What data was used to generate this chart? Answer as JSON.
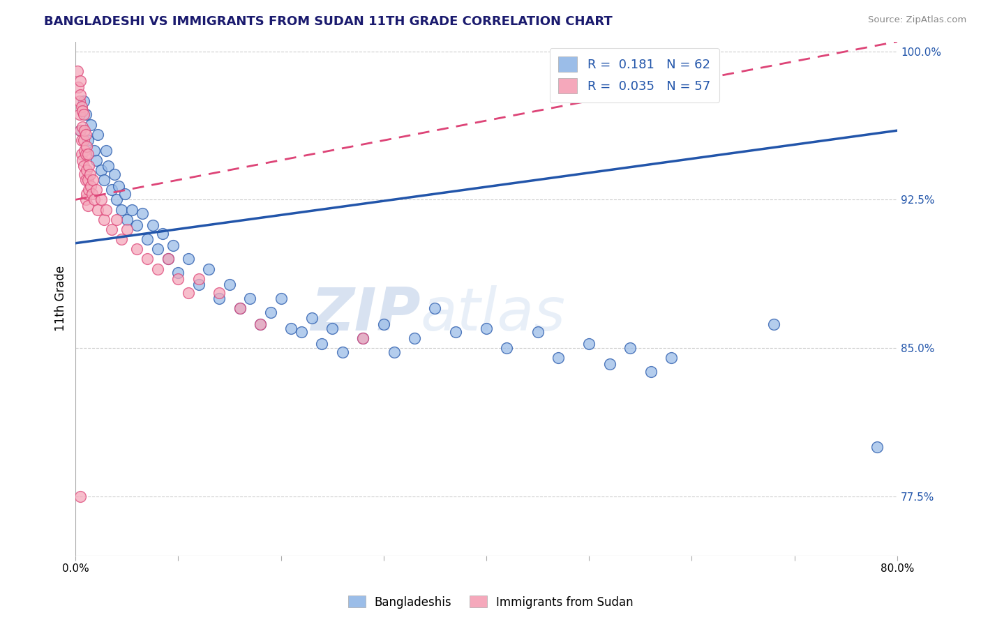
{
  "title": "BANGLADESHI VS IMMIGRANTS FROM SUDAN 11TH GRADE CORRELATION CHART",
  "source": "Source: ZipAtlas.com",
  "ylabel": "11th Grade",
  "legend_labels": [
    "Bangladeshis",
    "Immigrants from Sudan"
  ],
  "R_blue": 0.181,
  "N_blue": 62,
  "R_pink": 0.035,
  "N_pink": 57,
  "xlim": [
    0.0,
    0.8
  ],
  "ylim": [
    0.745,
    1.005
  ],
  "xticks": [
    0.0,
    0.1,
    0.2,
    0.3,
    0.4,
    0.5,
    0.6,
    0.7,
    0.8
  ],
  "xtick_labels": [
    "0.0%",
    "",
    "",
    "",
    "",
    "",
    "",
    "",
    "80.0%"
  ],
  "yticks": [
    0.775,
    0.85,
    0.925,
    1.0
  ],
  "ytick_labels": [
    "77.5%",
    "85.0%",
    "92.5%",
    "100.0%"
  ],
  "blue_color": "#9BBDE8",
  "pink_color": "#F5A8BB",
  "blue_line_color": "#2255AA",
  "pink_line_color": "#DD4477",
  "watermark_zip": "ZIP",
  "watermark_atlas": "atlas",
  "blue_dots": [
    [
      0.005,
      0.96
    ],
    [
      0.008,
      0.975
    ],
    [
      0.01,
      0.968
    ],
    [
      0.012,
      0.955
    ],
    [
      0.015,
      0.963
    ],
    [
      0.018,
      0.95
    ],
    [
      0.02,
      0.945
    ],
    [
      0.022,
      0.958
    ],
    [
      0.025,
      0.94
    ],
    [
      0.028,
      0.935
    ],
    [
      0.03,
      0.95
    ],
    [
      0.032,
      0.942
    ],
    [
      0.035,
      0.93
    ],
    [
      0.038,
      0.938
    ],
    [
      0.04,
      0.925
    ],
    [
      0.042,
      0.932
    ],
    [
      0.045,
      0.92
    ],
    [
      0.048,
      0.928
    ],
    [
      0.05,
      0.915
    ],
    [
      0.055,
      0.92
    ],
    [
      0.06,
      0.912
    ],
    [
      0.065,
      0.918
    ],
    [
      0.07,
      0.905
    ],
    [
      0.075,
      0.912
    ],
    [
      0.08,
      0.9
    ],
    [
      0.085,
      0.908
    ],
    [
      0.09,
      0.895
    ],
    [
      0.095,
      0.902
    ],
    [
      0.1,
      0.888
    ],
    [
      0.11,
      0.895
    ],
    [
      0.12,
      0.882
    ],
    [
      0.13,
      0.89
    ],
    [
      0.14,
      0.875
    ],
    [
      0.15,
      0.882
    ],
    [
      0.16,
      0.87
    ],
    [
      0.17,
      0.875
    ],
    [
      0.18,
      0.862
    ],
    [
      0.19,
      0.868
    ],
    [
      0.2,
      0.875
    ],
    [
      0.21,
      0.86
    ],
    [
      0.22,
      0.858
    ],
    [
      0.23,
      0.865
    ],
    [
      0.24,
      0.852
    ],
    [
      0.25,
      0.86
    ],
    [
      0.26,
      0.848
    ],
    [
      0.28,
      0.855
    ],
    [
      0.3,
      0.862
    ],
    [
      0.31,
      0.848
    ],
    [
      0.33,
      0.855
    ],
    [
      0.35,
      0.87
    ],
    [
      0.37,
      0.858
    ],
    [
      0.4,
      0.86
    ],
    [
      0.42,
      0.85
    ],
    [
      0.45,
      0.858
    ],
    [
      0.47,
      0.845
    ],
    [
      0.5,
      0.852
    ],
    [
      0.52,
      0.842
    ],
    [
      0.54,
      0.85
    ],
    [
      0.56,
      0.838
    ],
    [
      0.58,
      0.845
    ],
    [
      0.68,
      0.862
    ],
    [
      0.78,
      0.8
    ]
  ],
  "pink_dots": [
    [
      0.002,
      0.99
    ],
    [
      0.003,
      0.982
    ],
    [
      0.004,
      0.975
    ],
    [
      0.004,
      0.968
    ],
    [
      0.005,
      0.985
    ],
    [
      0.005,
      0.978
    ],
    [
      0.005,
      0.96
    ],
    [
      0.006,
      0.972
    ],
    [
      0.006,
      0.955
    ],
    [
      0.006,
      0.948
    ],
    [
      0.007,
      0.97
    ],
    [
      0.007,
      0.962
    ],
    [
      0.007,
      0.945
    ],
    [
      0.008,
      0.968
    ],
    [
      0.008,
      0.955
    ],
    [
      0.008,
      0.942
    ],
    [
      0.009,
      0.96
    ],
    [
      0.009,
      0.95
    ],
    [
      0.009,
      0.938
    ],
    [
      0.01,
      0.958
    ],
    [
      0.01,
      0.948
    ],
    [
      0.01,
      0.935
    ],
    [
      0.01,
      0.925
    ],
    [
      0.011,
      0.952
    ],
    [
      0.011,
      0.94
    ],
    [
      0.011,
      0.928
    ],
    [
      0.012,
      0.948
    ],
    [
      0.012,
      0.935
    ],
    [
      0.012,
      0.922
    ],
    [
      0.013,
      0.942
    ],
    [
      0.013,
      0.93
    ],
    [
      0.014,
      0.938
    ],
    [
      0.015,
      0.932
    ],
    [
      0.016,
      0.928
    ],
    [
      0.017,
      0.935
    ],
    [
      0.018,
      0.925
    ],
    [
      0.02,
      0.93
    ],
    [
      0.022,
      0.92
    ],
    [
      0.025,
      0.925
    ],
    [
      0.028,
      0.915
    ],
    [
      0.03,
      0.92
    ],
    [
      0.035,
      0.91
    ],
    [
      0.04,
      0.915
    ],
    [
      0.045,
      0.905
    ],
    [
      0.05,
      0.91
    ],
    [
      0.06,
      0.9
    ],
    [
      0.07,
      0.895
    ],
    [
      0.08,
      0.89
    ],
    [
      0.09,
      0.895
    ],
    [
      0.1,
      0.885
    ],
    [
      0.11,
      0.878
    ],
    [
      0.12,
      0.885
    ],
    [
      0.14,
      0.878
    ],
    [
      0.16,
      0.87
    ],
    [
      0.18,
      0.862
    ],
    [
      0.005,
      0.775
    ],
    [
      0.28,
      0.855
    ]
  ]
}
